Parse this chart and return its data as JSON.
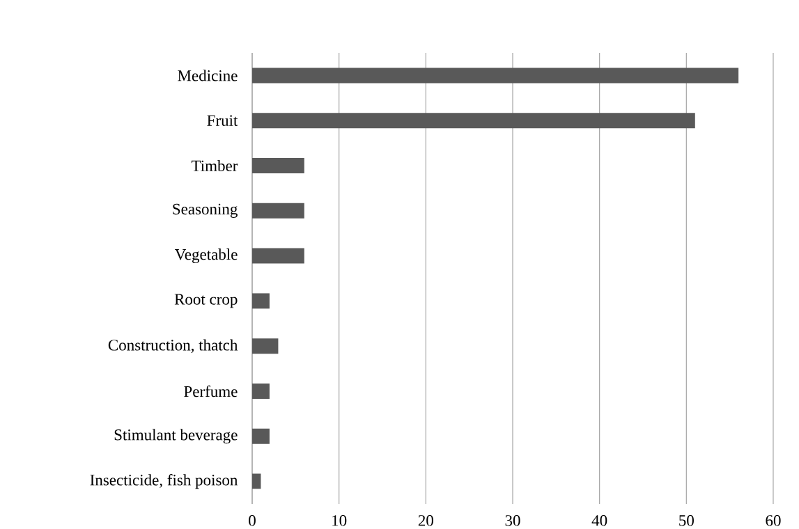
{
  "chart_data": {
    "type": "bar",
    "orientation": "horizontal",
    "categories": [
      "Medicine",
      "Fruit",
      "Timber",
      "Seasoning",
      "Vegetable",
      "Root crop",
      "Construction, thatch",
      "Perfume",
      "Stimulant beverage",
      "Insecticide, fish poison"
    ],
    "values": [
      56,
      51,
      6,
      6,
      6,
      2,
      3,
      2,
      2,
      1
    ],
    "color": "#595959",
    "xlim": [
      0,
      60
    ],
    "xticks": [
      0,
      10,
      20,
      30,
      40,
      50,
      60
    ],
    "grid": "x"
  }
}
